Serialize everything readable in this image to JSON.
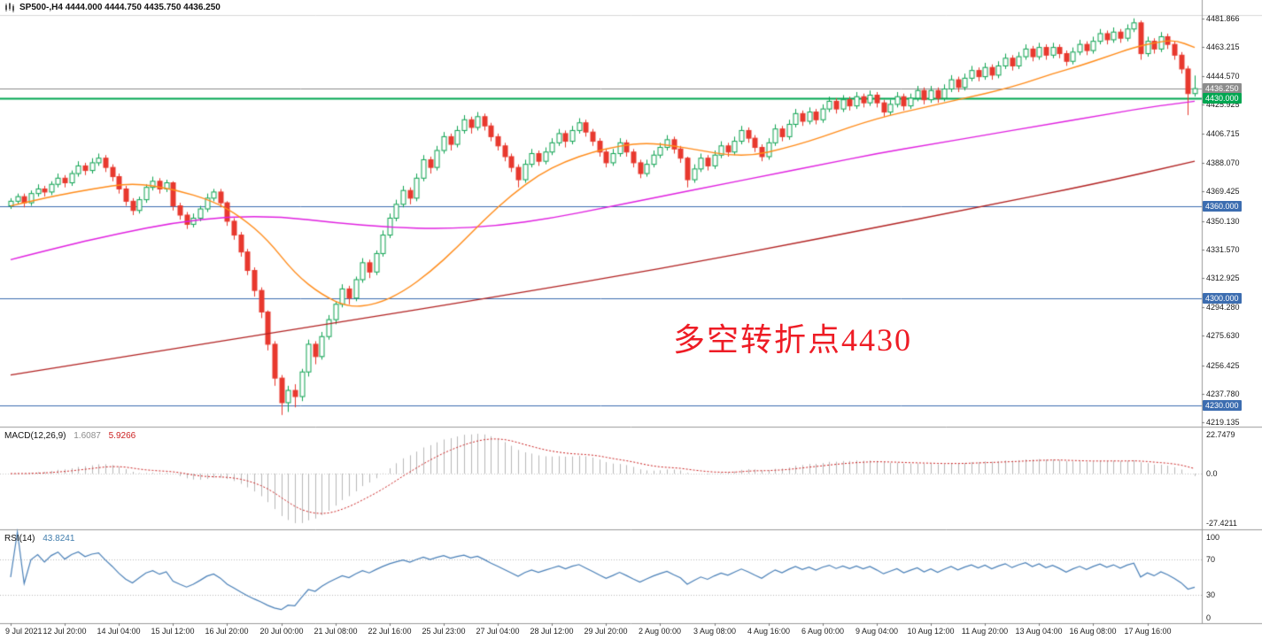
{
  "header": {
    "title": "SP500-,H4  4444.000 4444.750 4435.750 4436.250"
  },
  "annotation": {
    "text": "多空转折点4430",
    "color": "#ee1c25"
  },
  "colors": {
    "up": "#0fa352",
    "down": "#e8392e",
    "ma_fast": "#ff8c1a",
    "ma_mid": "#e020e0",
    "ma_slow": "#b22222",
    "macd_hist": "#b8b8b8",
    "macd_signal": "#cc2222",
    "rsi": "#4a80b8",
    "rsi_levels": "#bbbbbb",
    "level_blue": "#3c6db0",
    "level_green": "#00a651",
    "current_price": "#8c8c8c"
  },
  "chart_data": {
    "type": "candlestick",
    "title": "SP500-,H4",
    "symbol": "SP500-",
    "timeframe": "H4",
    "ohlc_current": [
      4444.0,
      4444.75,
      4435.75,
      4436.25
    ],
    "ylim": [
      4219.135,
      4481.866
    ],
    "y_ticks": [
      4481.866,
      4463.215,
      4444.57,
      4425.925,
      4406.715,
      4388.07,
      4369.425,
      4350.13,
      4331.57,
      4312.925,
      4294.28,
      4275.63,
      4256.425,
      4237.78,
      4219.135
    ],
    "x_labels": [
      "9 Jul 2021",
      "12 Jul 20:00",
      "14 Jul 04:00",
      "15 Jul 12:00",
      "16 Jul 20:00",
      "20 Jul 00:00",
      "21 Jul 08:00",
      "22 Jul 16:00",
      "25 Jul 23:00",
      "27 Jul 04:00",
      "28 Jul 12:00",
      "29 Jul 20:00",
      "2 Aug 00:00",
      "3 Aug 08:00",
      "4 Aug 16:00",
      "6 Aug 00:00",
      "9 Aug 04:00",
      "10 Aug 12:00",
      "11 Aug 20:00",
      "13 Aug 04:00",
      "16 Aug 08:00",
      "17 Aug 16:00"
    ],
    "label_every_n_bars": 8,
    "h_levels": [
      {
        "price": 4436.25,
        "style": "current"
      },
      {
        "price": 4430.0,
        "style": "green"
      },
      {
        "price": 4360.0,
        "style": "blue"
      },
      {
        "price": 4300.0,
        "style": "blue"
      },
      {
        "price": 4230.0,
        "style": "blue"
      }
    ],
    "candles": [
      [
        4360,
        4365,
        4358,
        4363
      ],
      [
        4363,
        4368,
        4361,
        4366
      ],
      [
        4366,
        4368,
        4359,
        4362
      ],
      [
        4362,
        4370,
        4360,
        4368
      ],
      [
        4368,
        4374,
        4366,
        4371
      ],
      [
        4371,
        4373,
        4366,
        4369
      ],
      [
        4369,
        4376,
        4367,
        4374
      ],
      [
        4374,
        4381,
        4372,
        4378
      ],
      [
        4378,
        4380,
        4372,
        4375
      ],
      [
        4375,
        4383,
        4373,
        4381
      ],
      [
        4381,
        4389,
        4379,
        4386
      ],
      [
        4386,
        4388,
        4380,
        4383
      ],
      [
        4383,
        4391,
        4381,
        4388
      ],
      [
        4388,
        4394,
        4386,
        4391
      ],
      [
        4391,
        4393,
        4382,
        4385
      ],
      [
        4385,
        4387,
        4376,
        4379
      ],
      [
        4379,
        4381,
        4368,
        4371
      ],
      [
        4371,
        4373,
        4360,
        4363
      ],
      [
        4363,
        4365,
        4354,
        4357
      ],
      [
        4357,
        4366,
        4355,
        4364
      ],
      [
        4364,
        4374,
        4362,
        4372
      ],
      [
        4372,
        4379,
        4370,
        4376
      ],
      [
        4376,
        4378,
        4368,
        4371
      ],
      [
        4371,
        4377,
        4369,
        4375
      ],
      [
        4375,
        4376,
        4357,
        4360
      ],
      [
        4360,
        4362,
        4351,
        4354
      ],
      [
        4354,
        4356,
        4345,
        4348
      ],
      [
        4348,
        4355,
        4346,
        4352
      ],
      [
        4352,
        4360,
        4350,
        4358
      ],
      [
        4358,
        4368,
        4356,
        4365
      ],
      [
        4365,
        4371,
        4363,
        4369
      ],
      [
        4369,
        4371,
        4359,
        4362
      ],
      [
        4362,
        4363,
        4347,
        4350
      ],
      [
        4350,
        4352,
        4338,
        4341
      ],
      [
        4341,
        4343,
        4327,
        4330
      ],
      [
        4330,
        4332,
        4315,
        4318
      ],
      [
        4318,
        4320,
        4301,
        4305
      ],
      [
        4305,
        4307,
        4287,
        4291
      ],
      [
        4291,
        4292,
        4266,
        4270
      ],
      [
        4270,
        4272,
        4243,
        4248
      ],
      [
        4248,
        4250,
        4224,
        4232
      ],
      [
        4232,
        4243,
        4226,
        4240
      ],
      [
        4240,
        4244,
        4229,
        4236
      ],
      [
        4236,
        4254,
        4233,
        4252
      ],
      [
        4252,
        4273,
        4249,
        4270
      ],
      [
        4270,
        4272,
        4257,
        4262
      ],
      [
        4262,
        4278,
        4260,
        4275
      ],
      [
        4275,
        4289,
        4273,
        4286
      ],
      [
        4286,
        4298,
        4283,
        4296
      ],
      [
        4296,
        4309,
        4294,
        4306
      ],
      [
        4306,
        4308,
        4296,
        4300
      ],
      [
        4300,
        4314,
        4298,
        4312
      ],
      [
        4312,
        4326,
        4310,
        4323
      ],
      [
        4323,
        4325,
        4313,
        4317
      ],
      [
        4317,
        4331,
        4315,
        4329
      ],
      [
        4329,
        4344,
        4327,
        4341
      ],
      [
        4341,
        4355,
        4339,
        4352
      ],
      [
        4352,
        4364,
        4350,
        4361
      ],
      [
        4361,
        4373,
        4359,
        4370
      ],
      [
        4370,
        4372,
        4361,
        4365
      ],
      [
        4365,
        4381,
        4363,
        4378
      ],
      [
        4378,
        4393,
        4376,
        4390
      ],
      [
        4390,
        4392,
        4381,
        4385
      ],
      [
        4385,
        4399,
        4383,
        4396
      ],
      [
        4396,
        4408,
        4394,
        4405
      ],
      [
        4405,
        4407,
        4396,
        4400
      ],
      [
        4400,
        4412,
        4398,
        4409
      ],
      [
        4409,
        4419,
        4407,
        4416
      ],
      [
        4416,
        4418,
        4407,
        4411
      ],
      [
        4411,
        4421,
        4409,
        4418
      ],
      [
        4418,
        4420,
        4409,
        4412
      ],
      [
        4412,
        4414,
        4402,
        4405
      ],
      [
        4405,
        4407,
        4396,
        4399
      ],
      [
        4399,
        4401,
        4389,
        4392
      ],
      [
        4392,
        4394,
        4382,
        4385
      ],
      [
        4385,
        4387,
        4372,
        4377
      ],
      [
        4377,
        4390,
        4375,
        4387
      ],
      [
        4387,
        4397,
        4385,
        4394
      ],
      [
        4394,
        4396,
        4386,
        4389
      ],
      [
        4389,
        4398,
        4387,
        4395
      ],
      [
        4395,
        4404,
        4393,
        4401
      ],
      [
        4401,
        4410,
        4399,
        4407
      ],
      [
        4407,
        4409,
        4398,
        4402
      ],
      [
        4402,
        4412,
        4400,
        4409
      ],
      [
        4409,
        4417,
        4407,
        4414
      ],
      [
        4414,
        4416,
        4405,
        4408
      ],
      [
        4408,
        4410,
        4399,
        4402
      ],
      [
        4402,
        4404,
        4392,
        4395
      ],
      [
        4395,
        4397,
        4385,
        4388
      ],
      [
        4388,
        4397,
        4386,
        4394
      ],
      [
        4394,
        4404,
        4392,
        4401
      ],
      [
        4401,
        4403,
        4392,
        4395
      ],
      [
        4395,
        4397,
        4385,
        4388
      ],
      [
        4388,
        4390,
        4378,
        4381
      ],
      [
        4381,
        4390,
        4379,
        4387
      ],
      [
        4387,
        4396,
        4385,
        4393
      ],
      [
        4393,
        4401,
        4391,
        4398
      ],
      [
        4398,
        4406,
        4396,
        4403
      ],
      [
        4403,
        4405,
        4394,
        4397
      ],
      [
        4397,
        4399,
        4388,
        4391
      ],
      [
        4391,
        4392,
        4372,
        4377
      ],
      [
        4377,
        4387,
        4375,
        4384
      ],
      [
        4384,
        4394,
        4382,
        4391
      ],
      [
        4391,
        4393,
        4383,
        4386
      ],
      [
        4386,
        4396,
        4384,
        4393
      ],
      [
        4393,
        4402,
        4391,
        4399
      ],
      [
        4399,
        4401,
        4392,
        4395
      ],
      [
        4395,
        4405,
        4393,
        4402
      ],
      [
        4402,
        4412,
        4400,
        4409
      ],
      [
        4409,
        4411,
        4401,
        4404
      ],
      [
        4404,
        4406,
        4395,
        4398
      ],
      [
        4398,
        4400,
        4389,
        4392
      ],
      [
        4392,
        4404,
        4390,
        4401
      ],
      [
        4401,
        4413,
        4399,
        4410
      ],
      [
        4410,
        4412,
        4402,
        4405
      ],
      [
        4405,
        4416,
        4403,
        4413
      ],
      [
        4413,
        4423,
        4411,
        4420
      ],
      [
        4420,
        4422,
        4412,
        4415
      ],
      [
        4415,
        4424,
        4413,
        4421
      ],
      [
        4421,
        4423,
        4413,
        4416
      ],
      [
        4416,
        4426,
        4414,
        4423
      ],
      [
        4423,
        4431,
        4421,
        4428
      ],
      [
        4428,
        4430,
        4420,
        4423
      ],
      [
        4423,
        4432,
        4421,
        4429
      ],
      [
        4429,
        4431,
        4422,
        4425
      ],
      [
        4425,
        4434,
        4423,
        4431
      ],
      [
        4431,
        4433,
        4424,
        4427
      ],
      [
        4427,
        4435,
        4425,
        4432
      ],
      [
        4432,
        4434,
        4424,
        4427
      ],
      [
        4427,
        4429,
        4418,
        4421
      ],
      [
        4421,
        4429,
        4419,
        4426
      ],
      [
        4426,
        4434,
        4424,
        4431
      ],
      [
        4431,
        4433,
        4422,
        4425
      ],
      [
        4425,
        4433,
        4423,
        4430
      ],
      [
        4430,
        4438,
        4428,
        4435
      ],
      [
        4435,
        4437,
        4426,
        4429
      ],
      [
        4429,
        4438,
        4427,
        4435
      ],
      [
        4435,
        4437,
        4427,
        4430
      ],
      [
        4430,
        4439,
        4428,
        4436
      ],
      [
        4436,
        4445,
        4434,
        4442
      ],
      [
        4442,
        4444,
        4434,
        4437
      ],
      [
        4437,
        4446,
        4435,
        4443
      ],
      [
        4443,
        4451,
        4441,
        4448
      ],
      [
        4448,
        4450,
        4441,
        4444
      ],
      [
        4444,
        4453,
        4442,
        4450
      ],
      [
        4450,
        4452,
        4442,
        4445
      ],
      [
        4445,
        4454,
        4443,
        4451
      ],
      [
        4451,
        4459,
        4449,
        4456
      ],
      [
        4456,
        4458,
        4448,
        4451
      ],
      [
        4451,
        4460,
        4449,
        4457
      ],
      [
        4457,
        4465,
        4455,
        4462
      ],
      [
        4462,
        4464,
        4454,
        4457
      ],
      [
        4457,
        4466,
        4455,
        4463
      ],
      [
        4463,
        4465,
        4455,
        4458
      ],
      [
        4458,
        4466,
        4456,
        4463
      ],
      [
        4463,
        4465,
        4456,
        4459
      ],
      [
        4459,
        4461,
        4451,
        4454
      ],
      [
        4454,
        4463,
        4452,
        4460
      ],
      [
        4460,
        4468,
        4458,
        4465
      ],
      [
        4465,
        4467,
        4458,
        4461
      ],
      [
        4461,
        4470,
        4459,
        4467
      ],
      [
        4467,
        4475,
        4465,
        4472
      ],
      [
        4472,
        4474,
        4465,
        4468
      ],
      [
        4468,
        4476,
        4466,
        4473
      ],
      [
        4473,
        4475,
        4466,
        4469
      ],
      [
        4469,
        4478,
        4467,
        4475
      ],
      [
        4475,
        4481.9,
        4473,
        4479
      ],
      [
        4479,
        4480.5,
        4455,
        4459
      ],
      [
        4459,
        4470,
        4457,
        4467
      ],
      [
        4467,
        4469,
        4459,
        4462
      ],
      [
        4462,
        4473,
        4460,
        4470
      ],
      [
        4470,
        4472,
        4462,
        4465
      ],
      [
        4465,
        4467,
        4455,
        4458
      ],
      [
        4458,
        4460,
        4446,
        4449
      ],
      [
        4449,
        4451,
        4419,
        4433
      ],
      [
        4433,
        4444.75,
        4431,
        4436.25
      ]
    ],
    "overlays": {
      "ma_fast_orange": [
        [
          0,
          4360
        ],
        [
          6,
          4366
        ],
        [
          12,
          4371
        ],
        [
          18,
          4375
        ],
        [
          24,
          4371
        ],
        [
          30,
          4363
        ],
        [
          34,
          4353
        ],
        [
          38,
          4338
        ],
        [
          42,
          4316
        ],
        [
          46,
          4302
        ],
        [
          50,
          4294
        ],
        [
          54,
          4296
        ],
        [
          58,
          4304
        ],
        [
          62,
          4317
        ],
        [
          66,
          4333
        ],
        [
          70,
          4351
        ],
        [
          74,
          4367
        ],
        [
          78,
          4380
        ],
        [
          82,
          4389
        ],
        [
          86,
          4395
        ],
        [
          90,
          4399
        ],
        [
          94,
          4401
        ],
        [
          98,
          4399
        ],
        [
          102,
          4396
        ],
        [
          106,
          4393
        ],
        [
          110,
          4393
        ],
        [
          114,
          4397
        ],
        [
          118,
          4402
        ],
        [
          122,
          4408
        ],
        [
          126,
          4414
        ],
        [
          130,
          4419
        ],
        [
          134,
          4423
        ],
        [
          138,
          4427
        ],
        [
          142,
          4431
        ],
        [
          146,
          4435
        ],
        [
          150,
          4440
        ],
        [
          154,
          4446
        ],
        [
          158,
          4451
        ],
        [
          162,
          4457
        ],
        [
          166,
          4463
        ],
        [
          169,
          4466
        ],
        [
          172,
          4468
        ],
        [
          175,
          4463
        ]
      ],
      "ma_mid_magenta": [
        [
          0,
          4325
        ],
        [
          8,
          4334
        ],
        [
          16,
          4342
        ],
        [
          24,
          4349
        ],
        [
          32,
          4353
        ],
        [
          40,
          4353
        ],
        [
          48,
          4349
        ],
        [
          56,
          4346
        ],
        [
          64,
          4345
        ],
        [
          72,
          4347
        ],
        [
          80,
          4352
        ],
        [
          88,
          4359
        ],
        [
          96,
          4366
        ],
        [
          104,
          4373
        ],
        [
          112,
          4380
        ],
        [
          120,
          4387
        ],
        [
          128,
          4394
        ],
        [
          136,
          4400
        ],
        [
          144,
          4406
        ],
        [
          152,
          4412
        ],
        [
          160,
          4418
        ],
        [
          168,
          4424
        ],
        [
          175,
          4428
        ]
      ],
      "ma_slow_darkred": [
        [
          0,
          4250
        ],
        [
          24,
          4267
        ],
        [
          48,
          4284
        ],
        [
          72,
          4301
        ],
        [
          96,
          4319
        ],
        [
          120,
          4339
        ],
        [
          144,
          4360
        ],
        [
          160,
          4374
        ],
        [
          175,
          4389
        ]
      ]
    },
    "indicators": [
      {
        "name": "MACD",
        "label": "MACD(12,26,9)",
        "params": [
          12,
          26,
          9
        ],
        "values_text": [
          "1.6087",
          "5.9266"
        ],
        "axis_labels": [
          "22.7479",
          "0.0",
          "-27.4211"
        ],
        "axis_values": [
          22.7479,
          0.0,
          -27.4211
        ]
      },
      {
        "name": "RSI",
        "label": "RSI(14)",
        "params": [
          14
        ],
        "values_text": [
          "43.8241"
        ],
        "axis_labels": [
          "100",
          "70",
          "30",
          "0"
        ],
        "axis_values": [
          100,
          70,
          30,
          0
        ],
        "levels": [
          70,
          30
        ]
      }
    ]
  }
}
